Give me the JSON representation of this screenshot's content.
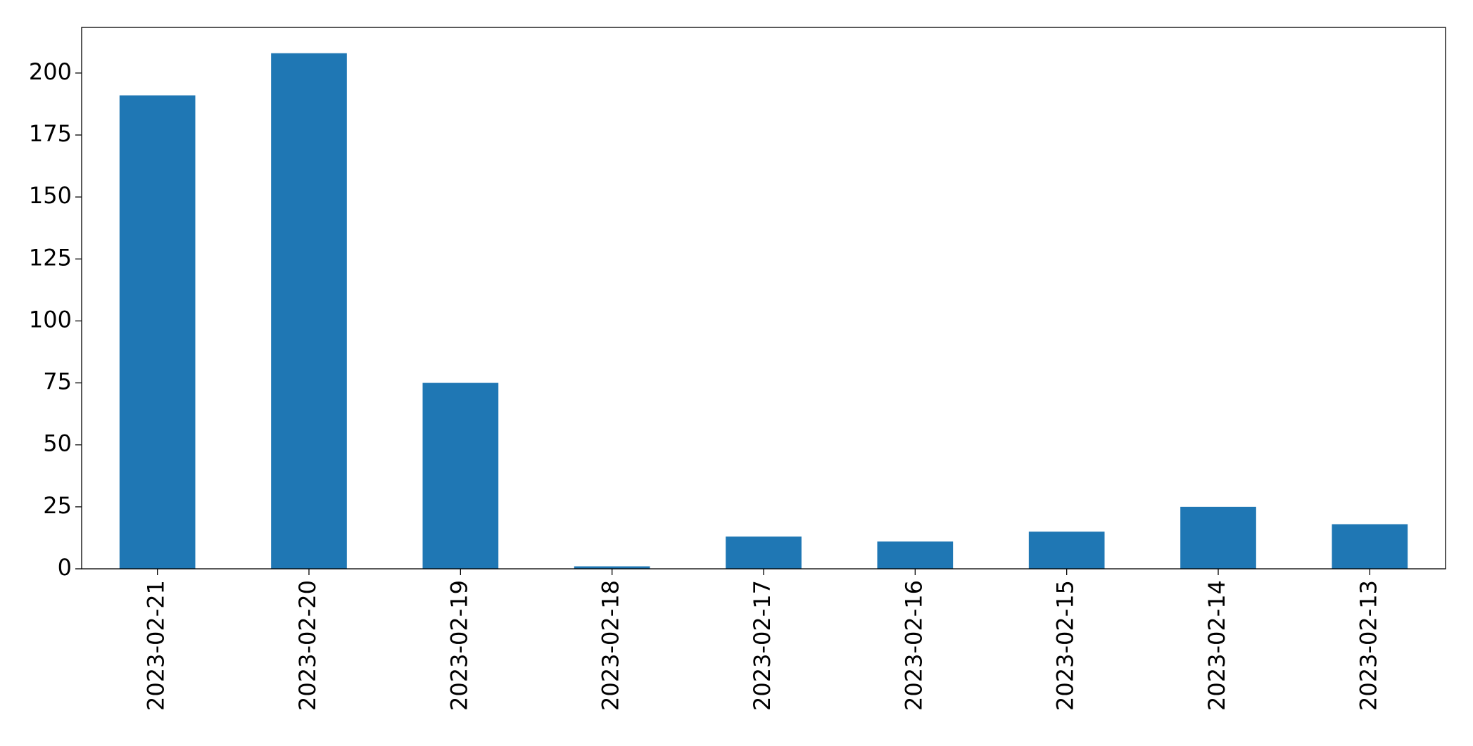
{
  "chart_data": {
    "type": "bar",
    "categories": [
      "2023-02-21",
      "2023-02-20",
      "2023-02-19",
      "2023-02-18",
      "2023-02-17",
      "2023-02-16",
      "2023-02-15",
      "2023-02-14",
      "2023-02-13"
    ],
    "values": [
      191,
      208,
      75,
      1,
      13,
      11,
      15,
      25,
      18
    ],
    "color": "#1f77b4",
    "ylim": [
      0,
      218.4
    ],
    "yticks": [
      0,
      25,
      50,
      75,
      100,
      125,
      150,
      175,
      200
    ],
    "grid": false
  }
}
